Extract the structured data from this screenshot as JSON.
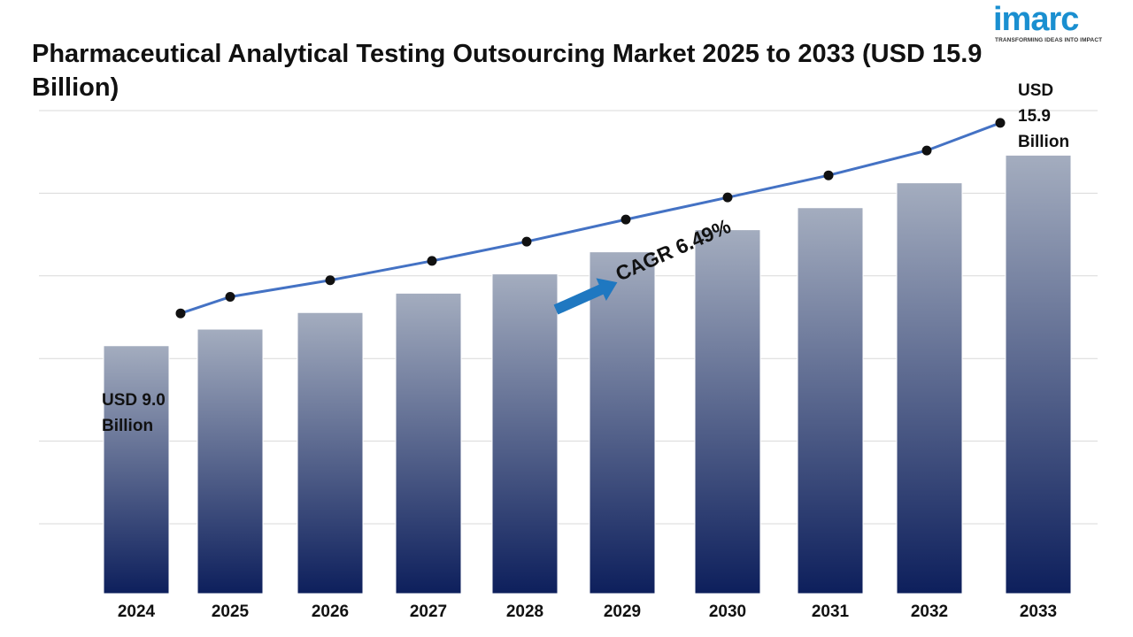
{
  "brand": {
    "logo_text": "imarc",
    "tagline": "TRANSFORMING IDEAS INTO IMPACT"
  },
  "chart_data": {
    "type": "bar",
    "title": "Pharmaceutical Analytical Testing Outsourcing Market 2025 to 2033 (USD 15.9 Billion)",
    "xlabel": "",
    "ylabel": "",
    "categories": [
      "2024",
      "2025",
      "2026",
      "2027",
      "2028",
      "2029",
      "2030",
      "2031",
      "2032",
      "2033"
    ],
    "values": [
      9.0,
      9.6,
      10.2,
      10.9,
      11.6,
      12.4,
      13.2,
      14.0,
      14.9,
      15.9
    ],
    "ylim": [
      0,
      17.5
    ],
    "grid": true,
    "trend_line": true,
    "annotations": {
      "start_label": [
        "USD 9.0",
        "Billion"
      ],
      "end_label": [
        "USD",
        "15.9",
        "Billion"
      ],
      "cagr": "CAGR 6.49%"
    },
    "colors": {
      "bar_top": "#a4adbf",
      "bar_bottom": "#0d1f5c",
      "line": "#4472c4",
      "marker": "#111111",
      "arrow": "#1f78c1",
      "grid": "#d9d9d9"
    }
  }
}
